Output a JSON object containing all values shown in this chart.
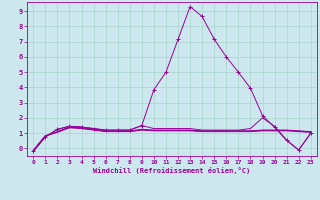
{
  "bg_color": "#cce8ee",
  "line_color": "#990099",
  "grid_color": "#aad4cc",
  "xlabel": "Windchill (Refroidissement éolien,°C)",
  "xlim": [
    -0.5,
    23.5
  ],
  "ylim": [
    -0.5,
    9.6
  ],
  "xticks": [
    0,
    1,
    2,
    3,
    4,
    5,
    6,
    7,
    8,
    9,
    10,
    11,
    12,
    13,
    14,
    15,
    16,
    17,
    18,
    19,
    20,
    21,
    22,
    23
  ],
  "yticks": [
    0,
    1,
    2,
    3,
    4,
    5,
    6,
    7,
    8,
    9
  ],
  "series": [
    {
      "x": [
        0,
        1,
        2,
        3,
        4,
        5,
        6,
        7,
        8,
        9,
        10,
        11,
        12,
        13,
        14,
        15,
        16,
        17,
        18,
        19,
        20,
        21,
        22,
        23
      ],
      "y": [
        -0.15,
        0.82,
        1.05,
        1.35,
        1.3,
        1.2,
        1.1,
        1.1,
        1.1,
        1.2,
        1.15,
        1.15,
        1.15,
        1.15,
        1.1,
        1.1,
        1.1,
        1.1,
        1.1,
        1.15,
        1.15,
        1.15,
        1.1,
        1.05
      ],
      "marker": false
    },
    {
      "x": [
        0,
        1,
        2,
        3,
        4,
        5,
        6,
        7,
        8,
        9,
        10,
        11,
        12,
        13,
        14,
        15,
        16,
        17,
        18,
        19,
        20,
        21,
        22,
        23
      ],
      "y": [
        -0.15,
        0.82,
        1.08,
        1.38,
        1.33,
        1.23,
        1.13,
        1.13,
        1.13,
        1.22,
        1.18,
        1.18,
        1.18,
        1.18,
        1.13,
        1.13,
        1.13,
        1.13,
        1.13,
        1.18,
        1.18,
        1.18,
        1.13,
        1.08
      ],
      "marker": false
    },
    {
      "x": [
        0,
        1,
        2,
        3,
        4,
        5,
        6,
        7,
        8,
        9,
        10,
        11,
        12,
        13,
        14,
        15,
        16,
        17,
        18,
        19,
        20,
        21,
        22,
        23
      ],
      "y": [
        -0.15,
        0.82,
        1.1,
        1.4,
        1.35,
        1.25,
        1.15,
        1.15,
        1.15,
        1.25,
        1.2,
        1.2,
        1.2,
        1.2,
        1.15,
        1.15,
        1.15,
        1.15,
        1.15,
        1.2,
        1.2,
        1.2,
        1.15,
        1.1
      ],
      "marker": false
    },
    {
      "x": [
        0,
        1,
        2,
        3,
        4,
        5,
        6,
        7,
        8,
        9,
        10,
        11,
        12,
        13,
        14,
        15,
        16,
        17,
        18,
        19,
        20,
        21,
        22,
        23
      ],
      "y": [
        -0.2,
        0.75,
        1.25,
        1.45,
        1.4,
        1.3,
        1.2,
        1.2,
        1.2,
        1.5,
        1.3,
        1.3,
        1.3,
        1.3,
        1.2,
        1.2,
        1.2,
        1.2,
        1.3,
        2.0,
        1.45,
        0.55,
        -0.1,
        1.0
      ],
      "marker": false
    },
    {
      "x": [
        0,
        1,
        2,
        3,
        4,
        5,
        6,
        7,
        8,
        9,
        10,
        11,
        12,
        13,
        14,
        15,
        16,
        17,
        18,
        19,
        20,
        21,
        22,
        23
      ],
      "y": [
        -0.2,
        0.75,
        1.25,
        1.45,
        1.4,
        1.3,
        1.2,
        1.2,
        1.2,
        1.5,
        3.85,
        5.0,
        7.15,
        9.3,
        8.65,
        7.15,
        6.0,
        5.0,
        3.95,
        2.15,
        1.38,
        0.52,
        -0.12,
        1.0
      ],
      "marker": true
    }
  ]
}
